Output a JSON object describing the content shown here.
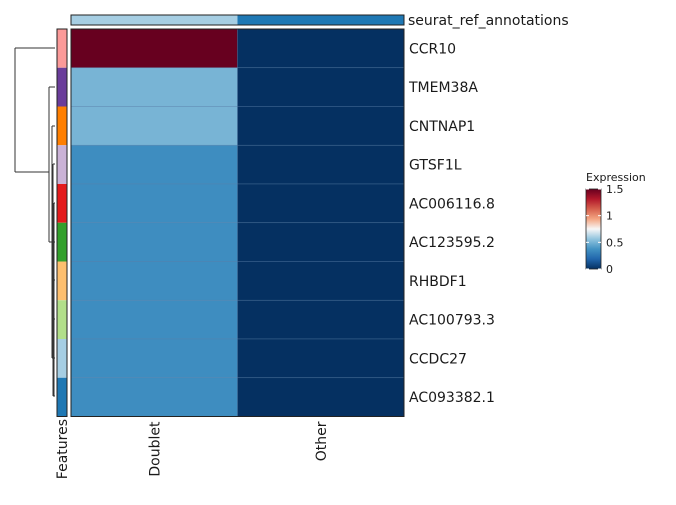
{
  "chart_data": {
    "type": "heatmap",
    "columns": [
      "Doublet",
      "Other"
    ],
    "rows": [
      "CCR10",
      "TMEM38A",
      "CNTNAP1",
      "GTSF1L",
      "AC006116.8",
      "AC123595.2",
      "RHBDF1",
      "AC100793.3",
      "CCDC27",
      "AC093382.1"
    ],
    "values": [
      [
        1.5,
        0.0
      ],
      [
        0.5,
        0.0
      ],
      [
        0.5,
        0.0
      ],
      [
        0.35,
        0.0
      ],
      [
        0.35,
        0.0
      ],
      [
        0.35,
        0.0
      ],
      [
        0.35,
        0.0
      ],
      [
        0.35,
        0.0
      ],
      [
        0.35,
        0.0
      ],
      [
        0.35,
        0.0
      ]
    ],
    "column_annotation": {
      "label": "seurat_ref_annotations",
      "colors": [
        "#a6cee3",
        "#1f78b4"
      ]
    },
    "row_annotation": {
      "label": "Features",
      "colors": [
        "#fb9a99",
        "#6a3d9a",
        "#ff7f00",
        "#cab2d6",
        "#e31a1c",
        "#33a02c",
        "#fdbf6f",
        "#b2df8a",
        "#a6cee3",
        "#1f78b4"
      ]
    },
    "legend": {
      "title": "Expression",
      "ticks": [
        "1.5",
        "1",
        "0.5",
        "0"
      ],
      "tick_values": [
        1.5,
        1.0,
        0.5,
        0.0
      ],
      "range": [
        0,
        1.5
      ],
      "placement": "right",
      "palette": [
        "#053061",
        "#2166ac",
        "#4393c3",
        "#92c5de",
        "#f7f7f7",
        "#f4a582",
        "#d6604d",
        "#b2182b",
        "#67001f"
      ]
    },
    "dendrogram": "rows"
  }
}
